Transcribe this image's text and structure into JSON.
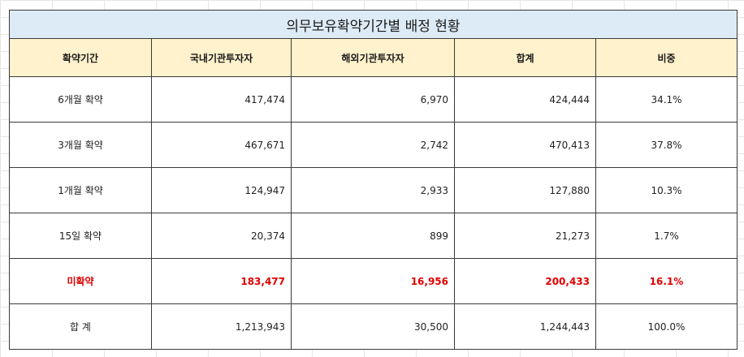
{
  "table": {
    "title": "의무보유확약기간별 배정 현황",
    "headers": [
      "확약기간",
      "국내기관투자자",
      "해외기관투자자",
      "합계",
      "비중"
    ],
    "rows": [
      {
        "period": "6개월 확약",
        "domestic": "417,474",
        "foreign": "6,970",
        "total": "424,444",
        "share": "34.1%"
      },
      {
        "period": "3개월 확약",
        "domestic": "467,671",
        "foreign": "2,742",
        "total": "470,413",
        "share": "37.8%"
      },
      {
        "period": "1개월 확약",
        "domestic": "124,947",
        "foreign": "2,933",
        "total": "127,880",
        "share": "10.3%"
      },
      {
        "period": "15일 확약",
        "domestic": "20,374",
        "foreign": "899",
        "total": "21,273",
        "share": "1.7%"
      },
      {
        "period": "미확약",
        "domestic": "183,477",
        "foreign": "16,956",
        "total": "200,433",
        "share": "16.1%"
      },
      {
        "period": "합 계",
        "domestic": "1,213,943",
        "foreign": "30,500",
        "total": "1,244,443",
        "share": "100.0%"
      }
    ]
  },
  "colors": {
    "title_bg": "#ddebf7",
    "header_bg": "#fff2cc",
    "highlight_text": "#e00000",
    "border": "#3a3a3a"
  }
}
